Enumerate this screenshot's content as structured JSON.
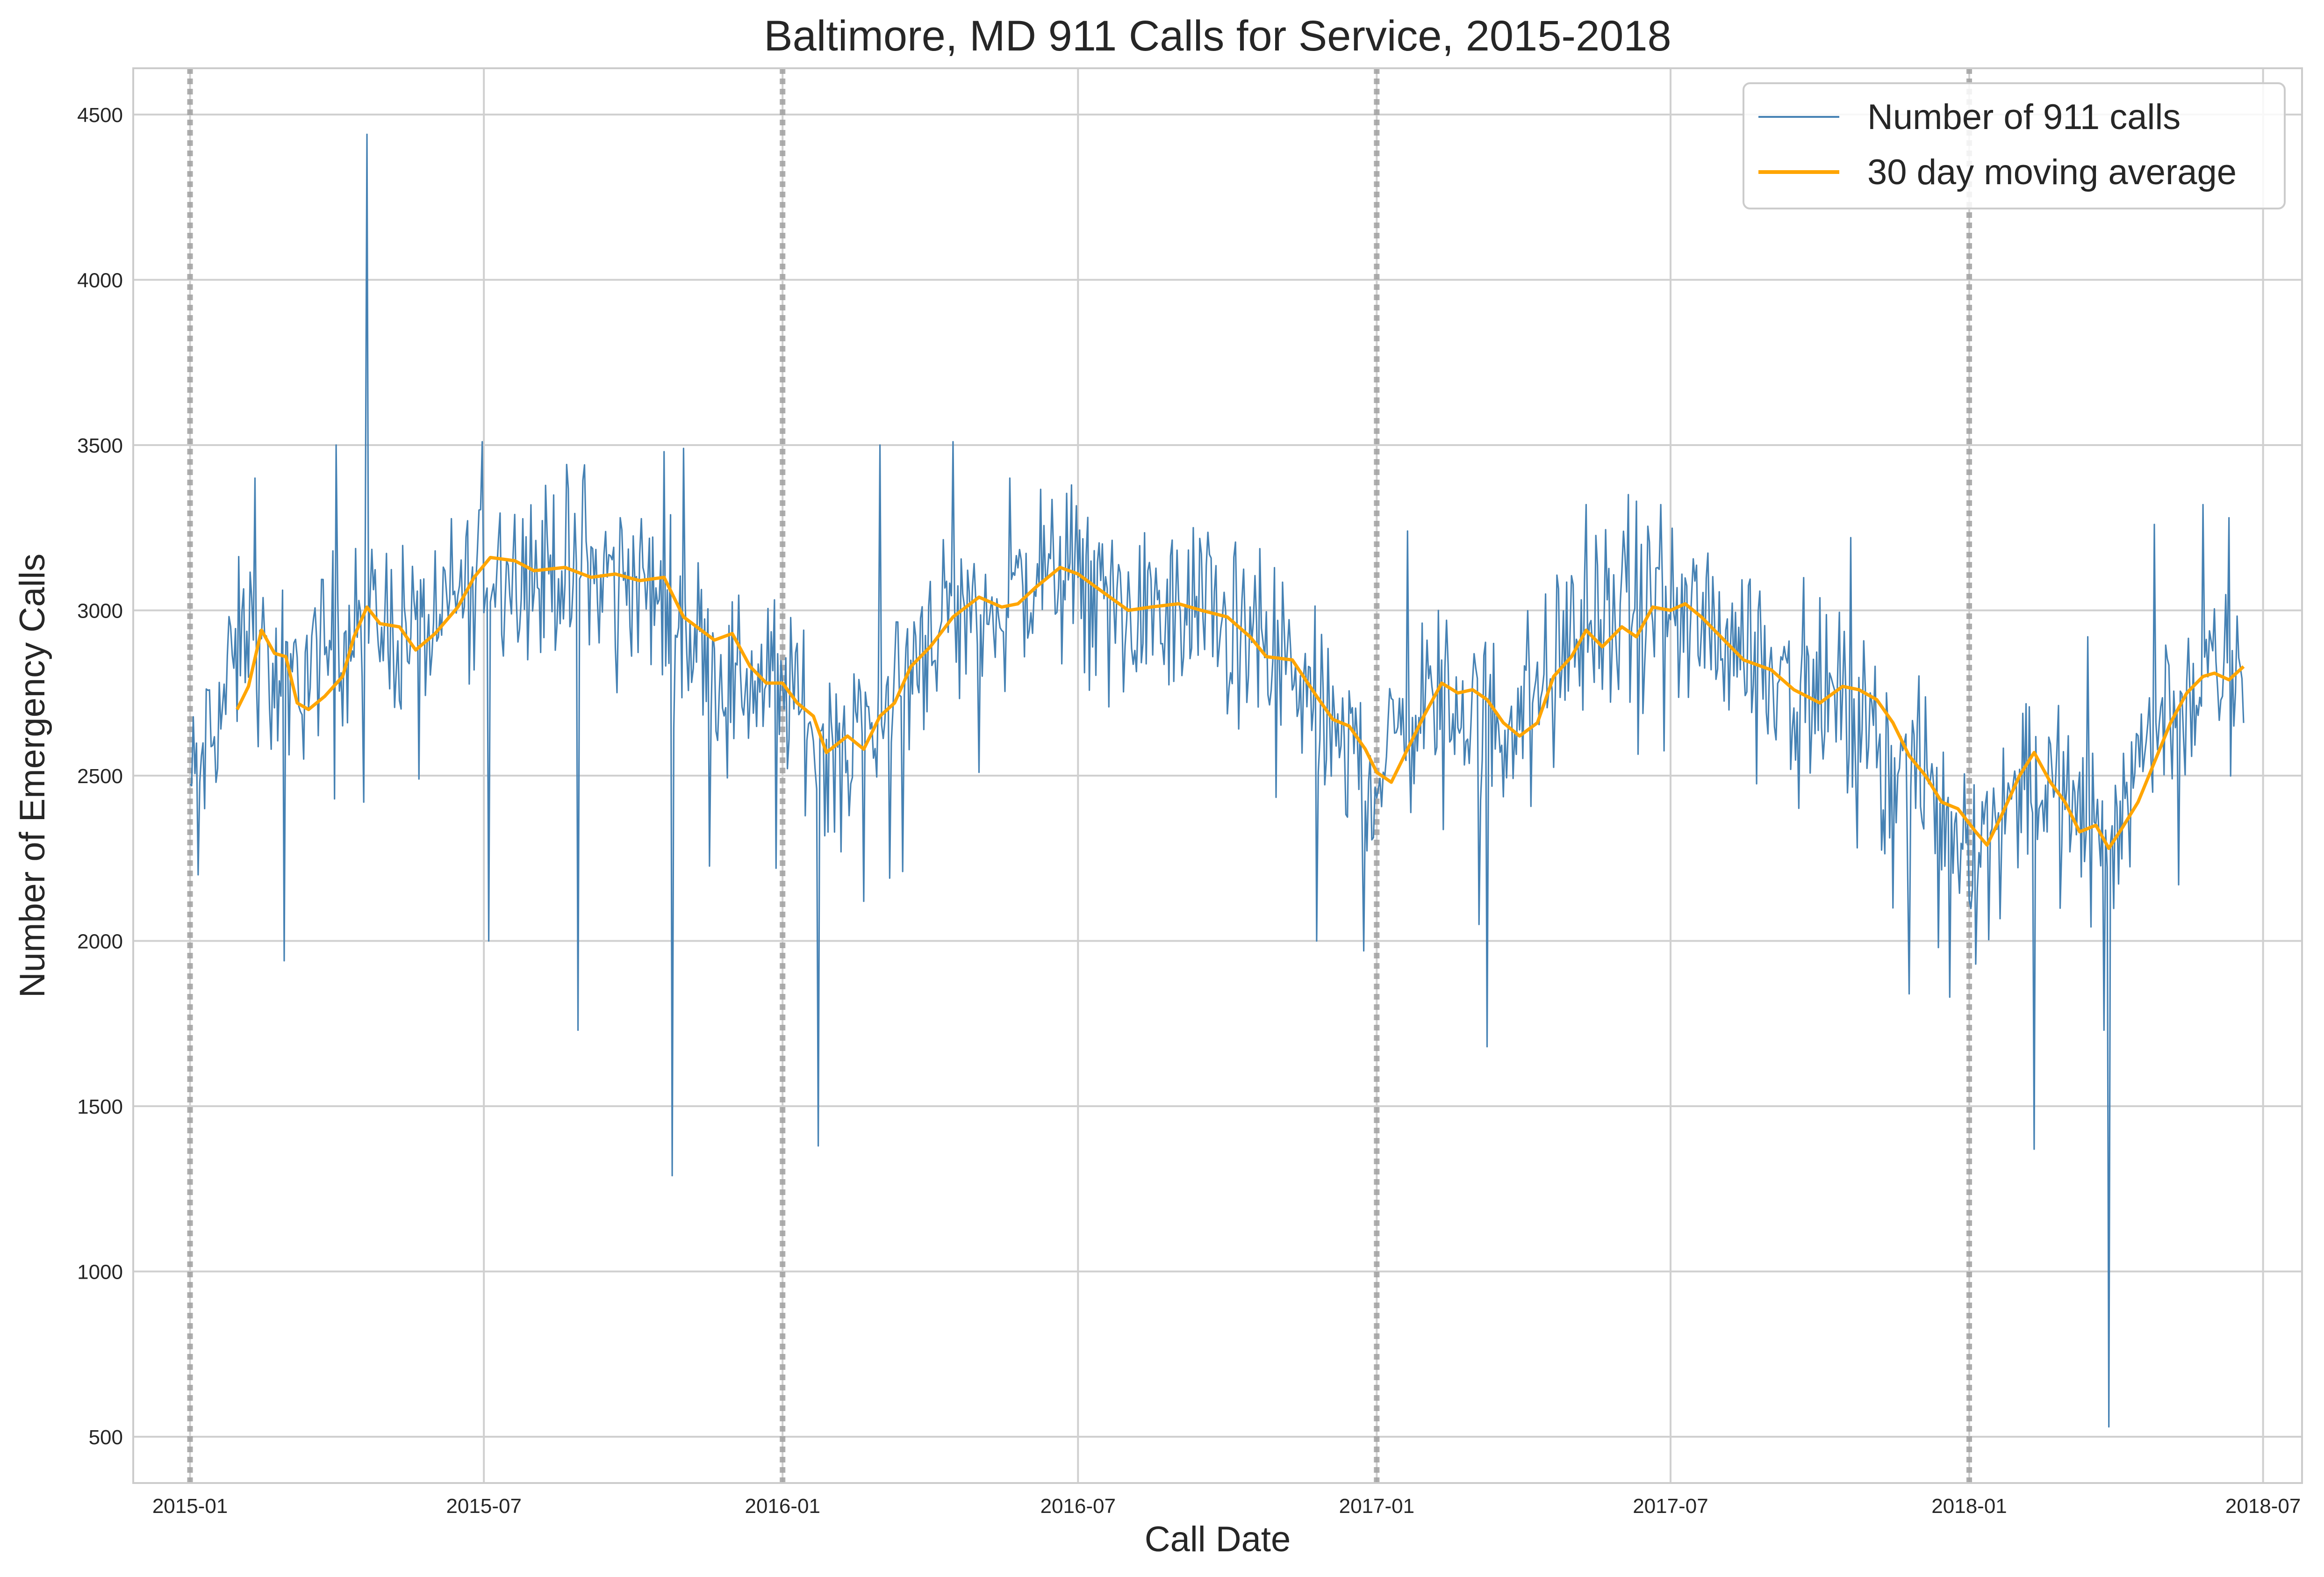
{
  "chart_data": {
    "type": "line",
    "title": "Baltimore, MD 911 Calls for Service, 2015-2018",
    "xlabel": "Call Date",
    "ylabel": "Number of Emergency Calls",
    "xlim": [
      "2014-11-27",
      "2018-07-25"
    ],
    "ylim": [
      360,
      4640
    ],
    "yticks": [
      500,
      1000,
      1500,
      2000,
      2500,
      3000,
      3500,
      4000,
      4500
    ],
    "xticks": [
      {
        "date": "2015-01-01",
        "label": "2015-01"
      },
      {
        "date": "2015-07-01",
        "label": "2015-07"
      },
      {
        "date": "2016-01-01",
        "label": "2016-01"
      },
      {
        "date": "2016-07-01",
        "label": "2016-07"
      },
      {
        "date": "2017-01-01",
        "label": "2017-01"
      },
      {
        "date": "2017-07-01",
        "label": "2017-07"
      },
      {
        "date": "2018-01-01",
        "label": "2018-01"
      },
      {
        "date": "2018-07-01",
        "label": "2018-07"
      }
    ],
    "year_markers": [
      "2015-01-01",
      "2016-01-01",
      "2017-01-01",
      "2018-01-01"
    ],
    "grid": true,
    "legend_position": "top-right",
    "series": [
      {
        "name": "Number of 911 calls",
        "color": "#4682b4",
        "start": "2015-01-01",
        "end": "2018-06-19",
        "frequency": "daily",
        "envelope": [
          [
            "2015-01-01",
            2450
          ],
          [
            "2015-01-20",
            2700
          ],
          [
            "2015-02-05",
            2950
          ],
          [
            "2015-02-25",
            2750
          ],
          [
            "2015-03-20",
            2850
          ],
          [
            "2015-04-15",
            3000
          ],
          [
            "2015-05-10",
            2950
          ],
          [
            "2015-06-01",
            2950
          ],
          [
            "2015-07-01",
            3150
          ],
          [
            "2015-08-15",
            3130
          ],
          [
            "2015-10-01",
            3100
          ],
          [
            "2015-11-01",
            2950
          ],
          [
            "2015-12-01",
            2800
          ],
          [
            "2016-01-01",
            2780
          ],
          [
            "2016-01-25",
            2600
          ],
          [
            "2016-02-25",
            2650
          ],
          [
            "2016-04-01",
            2950
          ],
          [
            "2016-05-15",
            3020
          ],
          [
            "2016-06-25",
            3130
          ],
          [
            "2016-08-01",
            3000
          ],
          [
            "2016-09-15",
            2980
          ],
          [
            "2016-11-01",
            2860
          ],
          [
            "2016-12-01",
            2650
          ],
          [
            "2017-01-01",
            2500
          ],
          [
            "2017-02-01",
            2750
          ],
          [
            "2017-03-20",
            2650
          ],
          [
            "2017-05-01",
            2920
          ],
          [
            "2017-06-15",
            3000
          ],
          [
            "2017-08-01",
            2950
          ],
          [
            "2017-10-01",
            2750
          ],
          [
            "2017-11-15",
            2550
          ],
          [
            "2018-01-10",
            2300
          ],
          [
            "2018-02-05",
            2550
          ],
          [
            "2018-03-20",
            2300
          ],
          [
            "2018-05-01",
            2700
          ],
          [
            "2018-06-19",
            2830
          ]
        ],
        "peaks": [
          [
            "2015-04-20",
            4440
          ],
          [
            "2015-02-10",
            3400
          ],
          [
            "2015-04-01",
            3500
          ],
          [
            "2015-06-30",
            3510
          ],
          [
            "2015-09-01",
            3440
          ],
          [
            "2015-10-20",
            3480
          ],
          [
            "2015-11-01",
            3490
          ],
          [
            "2016-03-01",
            3500
          ],
          [
            "2016-04-15",
            3510
          ],
          [
            "2016-05-20",
            3400
          ],
          [
            "2016-09-10",
            3250
          ],
          [
            "2017-01-20",
            3240
          ],
          [
            "2017-05-10",
            3320
          ],
          [
            "2017-06-05",
            3350
          ],
          [
            "2017-06-25",
            3320
          ],
          [
            "2017-10-20",
            3220
          ],
          [
            "2018-03-15",
            2920
          ],
          [
            "2018-04-25",
            3260
          ],
          [
            "2018-05-25",
            3320
          ],
          [
            "2018-06-10",
            3280
          ]
        ],
        "dips": [
          [
            "2015-01-06",
            2200
          ],
          [
            "2015-02-28",
            1940
          ],
          [
            "2015-04-18",
            2420
          ],
          [
            "2015-05-22",
            2490
          ],
          [
            "2015-06-25",
            2820
          ],
          [
            "2015-07-04",
            2000
          ],
          [
            "2015-08-28",
            1730
          ],
          [
            "2015-10-25",
            1290
          ],
          [
            "2015-12-28",
            2220
          ],
          [
            "2016-01-23",
            1380
          ],
          [
            "2016-02-20",
            2120
          ],
          [
            "2016-03-15",
            2210
          ],
          [
            "2016-05-01",
            2510
          ],
          [
            "2016-11-25",
            2000
          ],
          [
            "2016-12-24",
            1970
          ],
          [
            "2017-03-10",
            1680
          ],
          [
            "2017-03-05",
            2050
          ],
          [
            "2017-11-15",
            2100
          ],
          [
            "2017-11-25",
            1840
          ],
          [
            "2017-12-20",
            1830
          ],
          [
            "2018-01-05",
            1930
          ],
          [
            "2018-02-10",
            1370
          ],
          [
            "2018-03-28",
            530
          ],
          [
            "2018-03-25",
            1730
          ],
          [
            "2018-05-10",
            2170
          ]
        ]
      },
      {
        "name": "30 day moving average",
        "color": "#ffa500",
        "start": "2015-01-30",
        "end": "2018-06-19",
        "values": [
          [
            "2015-01-30",
            2700
          ],
          [
            "2015-02-06",
            2770
          ],
          [
            "2015-02-14",
            2940
          ],
          [
            "2015-02-22",
            2870
          ],
          [
            "2015-03-01",
            2860
          ],
          [
            "2015-03-08",
            2720
          ],
          [
            "2015-03-15",
            2700
          ],
          [
            "2015-03-25",
            2740
          ],
          [
            "2015-04-05",
            2800
          ],
          [
            "2015-04-12",
            2920
          ],
          [
            "2015-04-20",
            3010
          ],
          [
            "2015-04-28",
            2960
          ],
          [
            "2015-05-10",
            2950
          ],
          [
            "2015-05-20",
            2880
          ],
          [
            "2015-06-01",
            2930
          ],
          [
            "2015-06-15",
            3010
          ],
          [
            "2015-06-25",
            3100
          ],
          [
            "2015-07-05",
            3160
          ],
          [
            "2015-07-20",
            3150
          ],
          [
            "2015-08-01",
            3120
          ],
          [
            "2015-08-20",
            3130
          ],
          [
            "2015-09-05",
            3100
          ],
          [
            "2015-09-20",
            3110
          ],
          [
            "2015-10-05",
            3090
          ],
          [
            "2015-10-20",
            3100
          ],
          [
            "2015-11-01",
            2980
          ],
          [
            "2015-11-20",
            2910
          ],
          [
            "2015-12-01",
            2930
          ],
          [
            "2015-12-12",
            2830
          ],
          [
            "2015-12-22",
            2780
          ],
          [
            "2016-01-01",
            2780
          ],
          [
            "2016-01-10",
            2720
          ],
          [
            "2016-01-20",
            2680
          ],
          [
            "2016-01-28",
            2570
          ],
          [
            "2016-02-10",
            2620
          ],
          [
            "2016-02-20",
            2580
          ],
          [
            "2016-03-01",
            2680
          ],
          [
            "2016-03-10",
            2720
          ],
          [
            "2016-03-20",
            2830
          ],
          [
            "2016-04-01",
            2890
          ],
          [
            "2016-04-15",
            2980
          ],
          [
            "2016-05-01",
            3040
          ],
          [
            "2016-05-15",
            3010
          ],
          [
            "2016-05-25",
            3020
          ],
          [
            "2016-06-05",
            3070
          ],
          [
            "2016-06-20",
            3130
          ],
          [
            "2016-07-01",
            3110
          ],
          [
            "2016-07-15",
            3060
          ],
          [
            "2016-08-01",
            3000
          ],
          [
            "2016-08-15",
            3010
          ],
          [
            "2016-09-01",
            3020
          ],
          [
            "2016-09-15",
            3000
          ],
          [
            "2016-10-01",
            2980
          ],
          [
            "2016-10-15",
            2920
          ],
          [
            "2016-10-25",
            2860
          ],
          [
            "2016-11-10",
            2850
          ],
          [
            "2016-11-25",
            2740
          ],
          [
            "2016-12-05",
            2670
          ],
          [
            "2016-12-15",
            2650
          ],
          [
            "2016-12-25",
            2580
          ],
          [
            "2017-01-01",
            2510
          ],
          [
            "2017-01-10",
            2480
          ],
          [
            "2017-01-20",
            2580
          ],
          [
            "2017-01-30",
            2680
          ],
          [
            "2017-02-10",
            2780
          ],
          [
            "2017-02-20",
            2750
          ],
          [
            "2017-03-01",
            2760
          ],
          [
            "2017-03-10",
            2730
          ],
          [
            "2017-03-20",
            2660
          ],
          [
            "2017-03-30",
            2620
          ],
          [
            "2017-04-10",
            2660
          ],
          [
            "2017-04-20",
            2800
          ],
          [
            "2017-05-01",
            2860
          ],
          [
            "2017-05-10",
            2940
          ],
          [
            "2017-05-20",
            2890
          ],
          [
            "2017-06-01",
            2950
          ],
          [
            "2017-06-10",
            2920
          ],
          [
            "2017-06-20",
            3010
          ],
          [
            "2017-07-01",
            3000
          ],
          [
            "2017-07-10",
            3020
          ],
          [
            "2017-07-20",
            2980
          ],
          [
            "2017-08-01",
            2920
          ],
          [
            "2017-08-15",
            2850
          ],
          [
            "2017-09-01",
            2820
          ],
          [
            "2017-09-15",
            2760
          ],
          [
            "2017-10-01",
            2720
          ],
          [
            "2017-10-15",
            2770
          ],
          [
            "2017-10-25",
            2760
          ],
          [
            "2017-11-05",
            2730
          ],
          [
            "2017-11-15",
            2660
          ],
          [
            "2017-11-25",
            2560
          ],
          [
            "2017-12-05",
            2500
          ],
          [
            "2017-12-15",
            2420
          ],
          [
            "2017-12-25",
            2400
          ],
          [
            "2018-01-05",
            2330
          ],
          [
            "2018-01-12",
            2290
          ],
          [
            "2018-01-20",
            2370
          ],
          [
            "2018-02-01",
            2500
          ],
          [
            "2018-02-10",
            2570
          ],
          [
            "2018-02-20",
            2480
          ],
          [
            "2018-03-01",
            2420
          ],
          [
            "2018-03-10",
            2330
          ],
          [
            "2018-03-20",
            2350
          ],
          [
            "2018-03-28",
            2280
          ],
          [
            "2018-04-05",
            2340
          ],
          [
            "2018-04-15",
            2420
          ],
          [
            "2018-04-25",
            2540
          ],
          [
            "2018-05-05",
            2660
          ],
          [
            "2018-05-15",
            2750
          ],
          [
            "2018-05-25",
            2800
          ],
          [
            "2018-06-01",
            2810
          ],
          [
            "2018-06-10",
            2790
          ],
          [
            "2018-06-19",
            2830
          ]
        ]
      }
    ]
  }
}
